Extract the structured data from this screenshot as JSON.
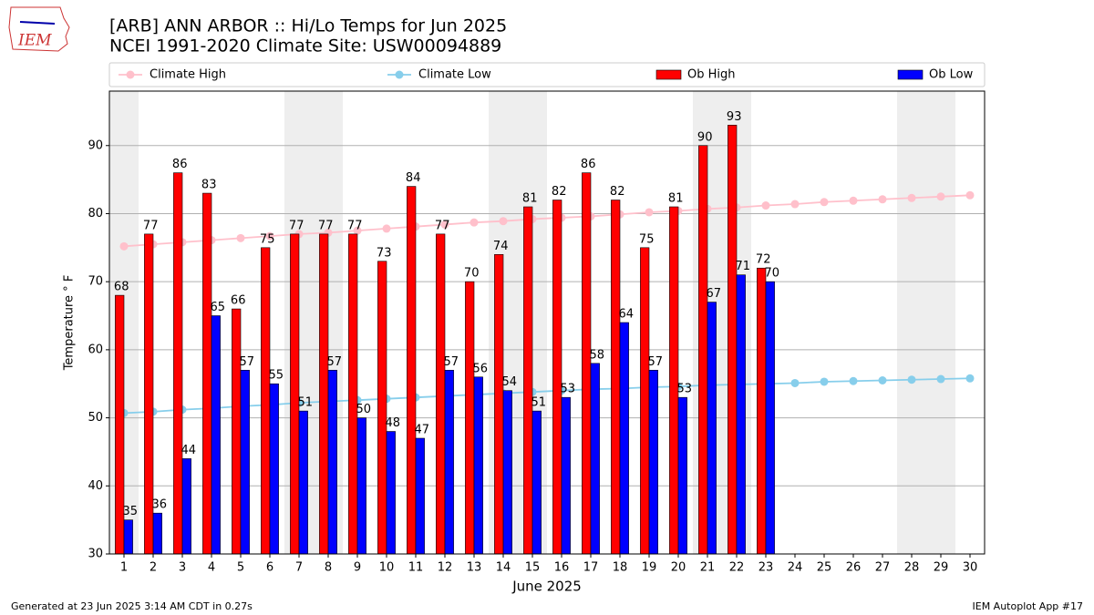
{
  "chart_data": {
    "type": "bar",
    "logo_text": "IEM",
    "title": "[ARB] ANN ARBOR :: Hi/Lo Temps for Jun 2025",
    "subtitle": "NCEI 1991-2020 Climate Site: USW00094889",
    "x_label": "June 2025",
    "y_label": "Temperature ° F",
    "footer_left": "Generated at 23 Jun 2025 3:14 AM CDT in 0.27s",
    "footer_right": "IEM Autoplot App #17",
    "x": [
      1,
      2,
      3,
      4,
      5,
      6,
      7,
      8,
      9,
      10,
      11,
      12,
      13,
      14,
      15,
      16,
      17,
      18,
      19,
      20,
      21,
      22,
      23,
      24,
      25,
      26,
      27,
      28,
      29,
      30
    ],
    "xlim": [
      0.5,
      30.5
    ],
    "xticks": [
      1,
      2,
      3,
      4,
      5,
      6,
      7,
      8,
      9,
      10,
      11,
      12,
      13,
      14,
      15,
      16,
      17,
      18,
      19,
      20,
      21,
      22,
      23,
      24,
      25,
      26,
      27,
      28,
      29,
      30
    ],
    "ylim": [
      30,
      98
    ],
    "yticks": [
      30,
      40,
      50,
      60,
      70,
      80,
      90
    ],
    "grid": true,
    "shaded_x": [
      1,
      7,
      8,
      14,
      15,
      21,
      22,
      28,
      29
    ],
    "shade_color": "#eeeeee",
    "series": [
      {
        "name": "Climate High",
        "type": "line",
        "color": "#ffc0cb",
        "values": [
          75.2,
          75.5,
          75.8,
          76.1,
          76.4,
          76.7,
          77.0,
          77.2,
          77.5,
          77.8,
          78.1,
          78.4,
          78.7,
          78.9,
          79.2,
          79.4,
          79.6,
          79.9,
          80.2,
          80.4,
          80.7,
          80.9,
          81.2,
          81.4,
          81.7,
          81.9,
          82.1,
          82.3,
          82.5,
          82.7
        ]
      },
      {
        "name": "Climate Low",
        "type": "line",
        "color": "#87ceeb",
        "values": [
          50.7,
          50.9,
          51.2,
          51.4,
          51.7,
          51.9,
          52.2,
          52.4,
          52.6,
          52.8,
          53.0,
          53.2,
          53.4,
          53.6,
          53.8,
          54.0,
          54.2,
          54.3,
          54.5,
          54.6,
          54.8,
          54.9,
          55.0,
          55.1,
          55.3,
          55.4,
          55.5,
          55.6,
          55.7,
          55.8
        ]
      },
      {
        "name": "Ob High",
        "type": "bar",
        "color": "#ff0000",
        "values": [
          68,
          77,
          86,
          83,
          66,
          75,
          77,
          77,
          77,
          73,
          84,
          77,
          70,
          74,
          81,
          82,
          86,
          82,
          75,
          81,
          90,
          93,
          72,
          null,
          null,
          null,
          null,
          null,
          null,
          null
        ]
      },
      {
        "name": "Ob Low",
        "type": "bar",
        "color": "#0000ff",
        "values": [
          35,
          36,
          44,
          65,
          57,
          55,
          51,
          57,
          50,
          48,
          47,
          57,
          56,
          54,
          51,
          53,
          58,
          64,
          57,
          53,
          67,
          71,
          70,
          null,
          null,
          null,
          null,
          null,
          null,
          null
        ]
      }
    ]
  }
}
